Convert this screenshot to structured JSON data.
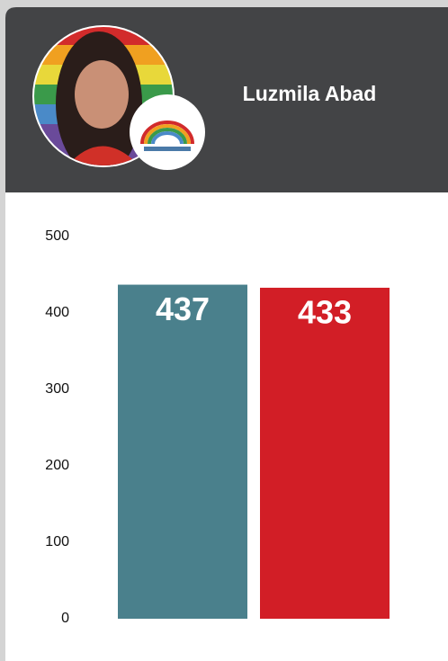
{
  "chart_data": {
    "type": "bar",
    "title": "Luzmila Abad",
    "categories": [
      null,
      null
    ],
    "values": [
      437,
      433
    ],
    "colors": [
      "#4a808c",
      "#d21e26"
    ],
    "ylim": [
      0,
      500
    ],
    "yticks": [
      0,
      100,
      200,
      300,
      400,
      500
    ],
    "grid": false
  }
}
